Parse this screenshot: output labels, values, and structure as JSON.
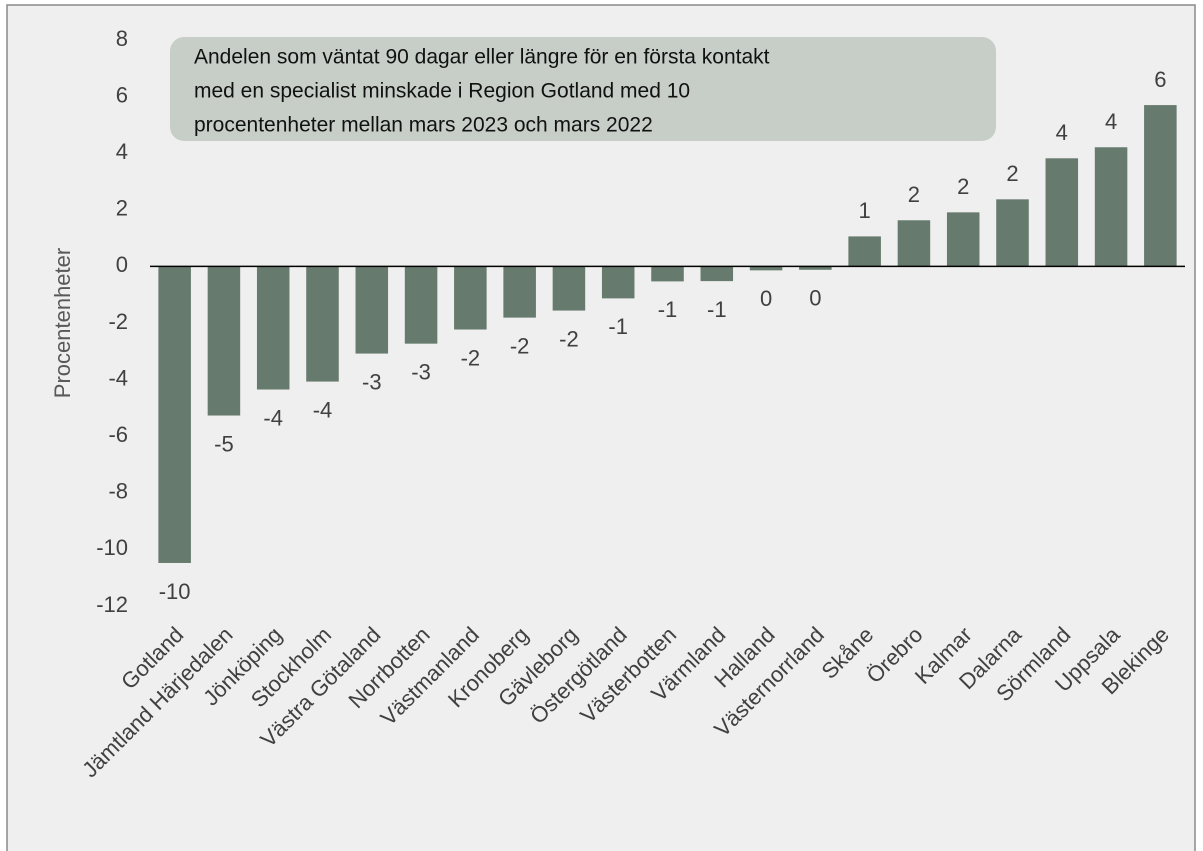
{
  "chart_data": {
    "type": "bar",
    "y_label": "Procentenheter",
    "annotation": [
      "Andelen som väntat 90 dagar eller längre för en första kontakt",
      "med en specialist minskade i Region Gotland med 10",
      "procentenheter mellan mars 2023 och mars 2022"
    ],
    "categories": [
      "Gotland",
      "Jämtland Härjedalen",
      "Jönköping",
      "Stockholm",
      "Västra Götaland",
      "Norrbotten",
      "Västmanland",
      "Kronoberg",
      "Gävleborg",
      "Östergötland",
      "Västerbotten",
      "Värmland",
      "Halland",
      "Västernorrland",
      "Skåne",
      "Örebro",
      "Kalmar",
      "Dalarna",
      "Sörmland",
      "Uppsala",
      "Blekinge"
    ],
    "values": [
      -10.48,
      -5.27,
      -4.35,
      -4.07,
      -3.08,
      -2.73,
      -2.23,
      -1.81,
      -1.56,
      -1.13,
      -0.53,
      -0.52,
      -0.14,
      -0.12,
      1.06,
      1.63,
      1.91,
      2.37,
      3.82,
      4.21,
      5.7
    ],
    "value_labels": [
      "-10",
      "-5",
      "-4",
      "-4",
      "-3",
      "-3",
      "-2",
      "-2",
      "-2",
      "-1",
      "-1",
      "-1",
      "0",
      "0",
      "1",
      "2",
      "2",
      "2",
      "4",
      "4",
      "6"
    ],
    "color": "#667a6d",
    "ylim": [
      -12,
      8
    ],
    "yticks": [
      -12,
      -10,
      -8,
      -6,
      -4,
      -2,
      0,
      2,
      4,
      6,
      8
    ]
  }
}
